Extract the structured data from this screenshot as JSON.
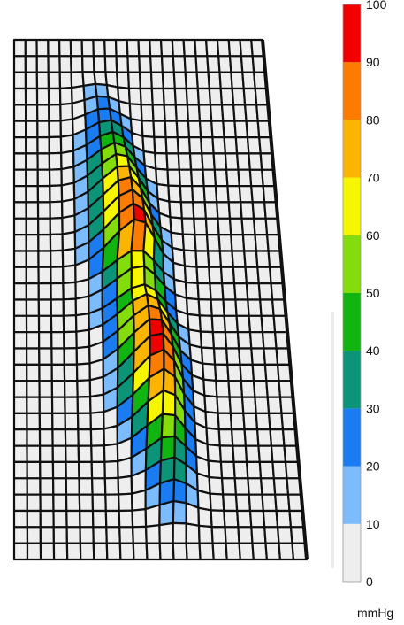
{
  "chart_data": {
    "type": "heatmap",
    "title": "",
    "colorbar": {
      "unit": "mmHg",
      "ticks": [
        "100",
        "90",
        "80",
        "70",
        "60",
        "50",
        "40",
        "30",
        "20",
        "10",
        "0"
      ],
      "range": [
        0,
        100
      ],
      "bands": [
        {
          "from": 0,
          "to": 10,
          "color": "#eeeeee"
        },
        {
          "from": 10,
          "to": 20,
          "color": "#7cbcfc"
        },
        {
          "from": 20,
          "to": 30,
          "color": "#1a7cf0"
        },
        {
          "from": 30,
          "to": 40,
          "color": "#0c9478"
        },
        {
          "from": 40,
          "to": 50,
          "color": "#12b412"
        },
        {
          "from": 50,
          "to": 60,
          "color": "#84dc0c"
        },
        {
          "from": 60,
          "to": 70,
          "color": "#f6f600"
        },
        {
          "from": 70,
          "to": 80,
          "color": "#fbb400"
        },
        {
          "from": 80,
          "to": 90,
          "color": "#fb7c00"
        },
        {
          "from": 90,
          "to": 100,
          "color": "#f20000"
        }
      ]
    },
    "surface": {
      "description_type": "3d-pressure-surface",
      "ridge_peak_mmhg": 100
    }
  }
}
